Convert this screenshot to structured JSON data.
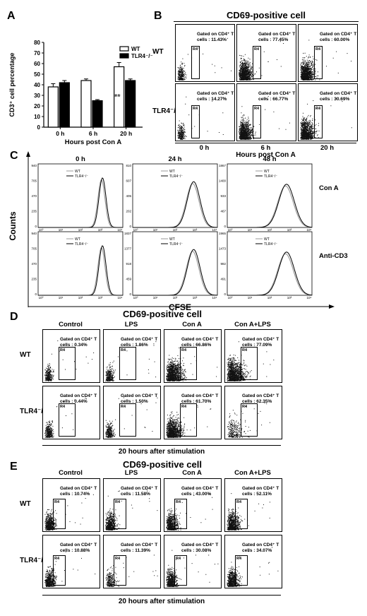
{
  "panelA": {
    "label": "A",
    "chart_data": {
      "type": "bar",
      "categories": [
        "0 h",
        "6 h",
        "20 h"
      ],
      "series": [
        {
          "name": "WT",
          "values": [
            38,
            44,
            57
          ],
          "errors": [
            3,
            1.5,
            4
          ]
        },
        {
          "name": "TLR4⁻/⁻",
          "values": [
            42,
            25,
            44
          ],
          "errors": [
            2,
            1,
            1.5
          ]
        }
      ],
      "ylabel": "CD3⁺ cell percentage",
      "xlabel": "Hours post Con A",
      "ylim": [
        0,
        80
      ],
      "yticks": [
        "0",
        "10",
        "20",
        "30",
        "40",
        "50",
        "60",
        "70",
        "80"
      ],
      "annotation": "**",
      "colors": {
        "WT": "#ffffff",
        "TLR4⁻/⁻": "#000000"
      }
    }
  },
  "panelB": {
    "label": "B",
    "title": "CD69-positive cell",
    "rows": [
      "WT",
      "TLR4⁻/⁻"
    ],
    "cols": [
      "0 h",
      "6 h",
      "20 h"
    ],
    "footer": "Hours post Con A",
    "gate_prefix": "Gated on CD4⁺ T",
    "gate_label": "R4",
    "cells": [
      [
        "cells : 11.43%",
        "cells : 77.45%",
        "cells : 60.00%"
      ],
      [
        "cells : 14.27%",
        "cells : 66.77%",
        "cells : 30.69%"
      ]
    ]
  },
  "panelC": {
    "label": "C",
    "cols": [
      "0 h",
      "24 h",
      "48 h"
    ],
    "rows": [
      "Con A",
      "Anti-CD3"
    ],
    "ylabel": "Counts",
    "xlabel": "CFSE",
    "legend": [
      "WT",
      "TLR4⁻/⁻"
    ],
    "yticks": [
      [
        [
          "940",
          "705",
          "470",
          "235",
          "0"
        ],
        [
          "810",
          "607",
          "405",
          "202",
          "0"
        ],
        [
          "1867",
          "1400",
          "933",
          "467",
          "0"
        ]
      ],
      [
        [
          "940",
          "705",
          "470",
          "235",
          "0"
        ],
        [
          "1837",
          "1377",
          "918",
          "459",
          "0"
        ],
        [
          "1965",
          "1473",
          "982",
          "491",
          "0"
        ]
      ]
    ],
    "xticks": [
      "10⁰",
      "10¹",
      "10²",
      "10³",
      "10⁴"
    ]
  },
  "panelD": {
    "label": "D",
    "title": "CD69-positive cell",
    "rows": [
      "WT",
      "TLR4⁻/⁻"
    ],
    "cols": [
      "Control",
      "LPS",
      "Con A",
      "Con A+LPS"
    ],
    "footer": "20 hours after stimulation",
    "gate_prefix": "Gated on CD4⁺ T",
    "gate_label": "R4",
    "cells": [
      [
        "cells : 0.34%",
        "cells : 1.86%",
        "cells : 66.86%",
        "cells : 77.09%"
      ],
      [
        "cells : 0.44%",
        "cells : 1.50%",
        "cells : 61.70%",
        "cells : 62.35%"
      ]
    ]
  },
  "panelE": {
    "label": "E",
    "title": "CD69-positive cell",
    "rows": [
      "WT",
      "TLR4⁻/⁻"
    ],
    "cols": [
      "Control",
      "LPS",
      "Con A",
      "Con A+LPS"
    ],
    "footer": "20 hours after stimulation",
    "gate_prefix": "Gated on CD4⁺ T",
    "gate_label": "R4",
    "cells": [
      [
        "cells : 10.74%",
        "cells : 11.58%",
        "cells : 43.00%",
        "cells : 52.11%"
      ],
      [
        "cells : 10.88%",
        "cells : 11.39%",
        "cells : 30.08%",
        "cells : 34.07%"
      ]
    ]
  }
}
